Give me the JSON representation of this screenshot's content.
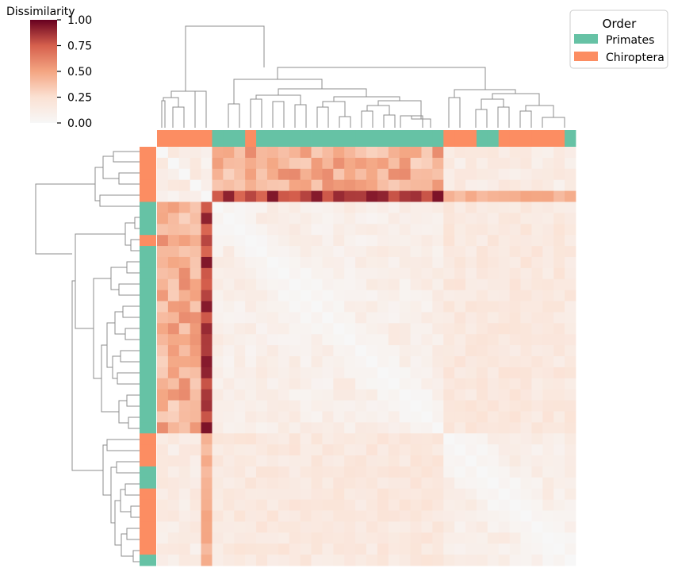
{
  "chart_data": {
    "type": "heatmap",
    "title": "",
    "xlabel": "",
    "ylabel": "",
    "n": 38,
    "value_range": [
      0,
      1
    ],
    "colorbar": {
      "title": "Dissimilarity",
      "ticks": [
        "0.00",
        "0.25",
        "0.50",
        "0.75",
        "1.00"
      ],
      "tick_values": [
        0,
        0.25,
        0.5,
        0.75,
        1
      ],
      "colormap_stops": [
        {
          "v": 0.0,
          "color": "#f7f7f7"
        },
        {
          "v": 0.25,
          "color": "#fbe1d3"
        },
        {
          "v": 0.5,
          "color": "#f4a582"
        },
        {
          "v": 0.75,
          "color": "#d6604d"
        },
        {
          "v": 1.0,
          "color": "#67001f"
        }
      ]
    },
    "legend": {
      "title": "Order",
      "placement": "top-right",
      "entries": [
        {
          "label": "Primates",
          "color": "#66c2a5"
        },
        {
          "label": "Chiroptera",
          "color": "#fc8d62"
        }
      ]
    },
    "col_orders": [
      "C",
      "C",
      "C",
      "C",
      "C",
      "P",
      "P",
      "P",
      "C",
      "P",
      "P",
      "P",
      "P",
      "P",
      "P",
      "P",
      "P",
      "P",
      "P",
      "P",
      "P",
      "P",
      "P",
      "P",
      "P",
      "P",
      "C",
      "C",
      "C",
      "P",
      "P",
      "C",
      "C",
      "C",
      "C",
      "C",
      "C",
      "P"
    ],
    "row_orders": [
      "C",
      "C",
      "C",
      "C",
      "C",
      "P",
      "P",
      "P",
      "C",
      "P",
      "P",
      "P",
      "P",
      "P",
      "P",
      "P",
      "P",
      "P",
      "P",
      "P",
      "P",
      "P",
      "P",
      "P",
      "P",
      "P",
      "C",
      "C",
      "C",
      "P",
      "P",
      "C",
      "C",
      "C",
      "C",
      "C",
      "C",
      "P"
    ],
    "outlier_index": 4,
    "block_means": {
      "bat_top": 0.12,
      "bat_vs_primate": 0.45,
      "outlier_vs_bat": 0.1,
      "outlier_vs_primate": 0.82,
      "primate_core": 0.1,
      "primate_vs_bat2": 0.17,
      "bat2": 0.1
    }
  }
}
